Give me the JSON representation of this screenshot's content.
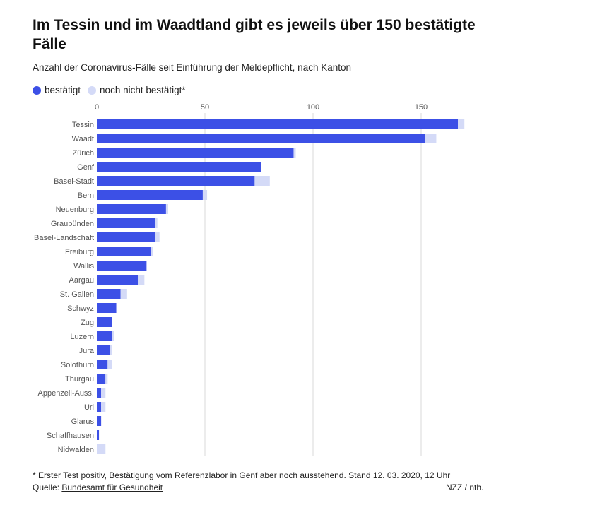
{
  "header": {
    "title": "Im Tessin und im Waadtland gibt es jeweils über 150 bestätigte Fälle",
    "subtitle": "Anzahl der Coronavirus-Fälle seit Einführung der Meldepflicht, nach Kanton"
  },
  "legend": {
    "confirmed_label": "bestätigt",
    "pending_label": "noch nicht bestätigt*"
  },
  "colors": {
    "confirmed": "#3c50e6",
    "pending": "#d4daf7",
    "grid": "#d9d9d9"
  },
  "chart_data": {
    "type": "bar",
    "orientation": "horizontal",
    "stacked": true,
    "title": "Im Tessin und im Waadtland gibt es jeweils über 150 bestätigte Fälle",
    "xlabel": "",
    "ylabel": "",
    "xlim": [
      0,
      170
    ],
    "xticks": [
      0,
      50,
      100,
      150
    ],
    "grid": true,
    "legend_position": "top-left",
    "categories": [
      "Tessin",
      "Waadt",
      "Zürich",
      "Genf",
      "Basel-Stadt",
      "Bern",
      "Neuenburg",
      "Graubünden",
      "Basel-Landschaft",
      "Freiburg",
      "Wallis",
      "Aargau",
      "St. Gallen",
      "Schwyz",
      "Zug",
      "Luzern",
      "Jura",
      "Solothurn",
      "Thurgau",
      "Appenzell-Auss.",
      "Uri",
      "Glarus",
      "Schaffhausen",
      "Nidwalden"
    ],
    "series": [
      {
        "name": "bestätigt",
        "values": [
          167,
          152,
          91,
          76,
          73,
          49,
          32,
          27,
          27,
          25,
          23,
          19,
          11,
          9,
          7,
          7,
          6,
          5,
          4,
          2,
          2,
          2,
          1,
          0
        ]
      },
      {
        "name": "noch nicht bestätigt*",
        "values": [
          3,
          5,
          1,
          0,
          7,
          2,
          1,
          1,
          2,
          1,
          0,
          3,
          3,
          0,
          0,
          1,
          1,
          2,
          1,
          2,
          2,
          0,
          0,
          4
        ]
      }
    ]
  },
  "footer": {
    "footnote": "* Erster Test positiv, Bestätigung vom Referenzlabor in Genf aber noch ausstehend. Stand 12. 03. 2020, 12 Uhr",
    "source_prefix": "Quelle: ",
    "source_link": "Bundesamt für Gesundheit",
    "credit": "NZZ / nth."
  }
}
